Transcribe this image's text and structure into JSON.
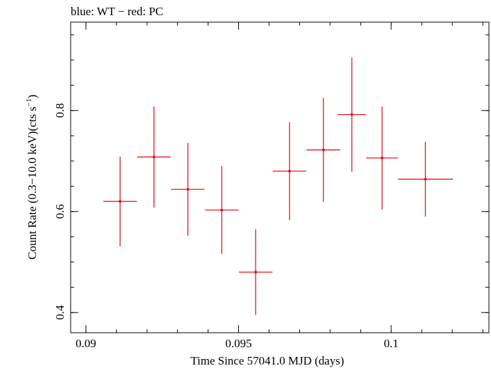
{
  "chart_data": {
    "type": "scatter",
    "title": "blue: WT − red: PC",
    "xlabel": "Time Since 57041.0 MJD (days)",
    "ylabel_main": "Count Rate (0.3−10.0 keV)(cts s",
    "ylabel_sup": "−1",
    "ylabel_close": ")",
    "xlim": [
      0.0895,
      0.1032
    ],
    "ylim": [
      0.36,
      0.975
    ],
    "xticks": [
      {
        "value": 0.09,
        "label": "0.09"
      },
      {
        "value": 0.095,
        "label": "0.095"
      },
      {
        "value": 0.1,
        "label": "0.1"
      }
    ],
    "xminor_step": 0.001,
    "yticks": [
      {
        "value": 0.4,
        "label": "0.4"
      },
      {
        "value": 0.6,
        "label": "0.6"
      },
      {
        "value": 0.8,
        "label": "0.8"
      }
    ],
    "yminor_step": 0.05,
    "grid": false,
    "colors": {
      "series": "#e8141b",
      "axis": "#000000"
    },
    "series": [
      {
        "color": "#e8141b",
        "points": [
          {
            "x": 0.09112,
            "xerr": 0.00055,
            "y": 0.62,
            "yerr": 0.089
          },
          {
            "x": 0.09223,
            "xerr": 0.00055,
            "y": 0.708,
            "yerr": 0.1
          },
          {
            "x": 0.09334,
            "xerr": 0.00055,
            "y": 0.644,
            "yerr": 0.092
          },
          {
            "x": 0.09445,
            "xerr": 0.00055,
            "y": 0.603,
            "yerr": 0.087
          },
          {
            "x": 0.09556,
            "xerr": 0.00055,
            "y": 0.48,
            "yerr": 0.085
          },
          {
            "x": 0.09667,
            "xerr": 0.00055,
            "y": 0.68,
            "yerr": 0.097
          },
          {
            "x": 0.09778,
            "xerr": 0.00055,
            "y": 0.722,
            "yerr": 0.103
          },
          {
            "x": 0.09871,
            "xerr": 0.00047,
            "y": 0.792,
            "yerr": 0.113
          },
          {
            "x": 0.0997,
            "xerr": 0.00052,
            "y": 0.706,
            "yerr": 0.102
          },
          {
            "x": 0.10112,
            "xerr": 0.0009,
            "y": 0.664,
            "yerr": 0.074
          }
        ]
      }
    ]
  }
}
